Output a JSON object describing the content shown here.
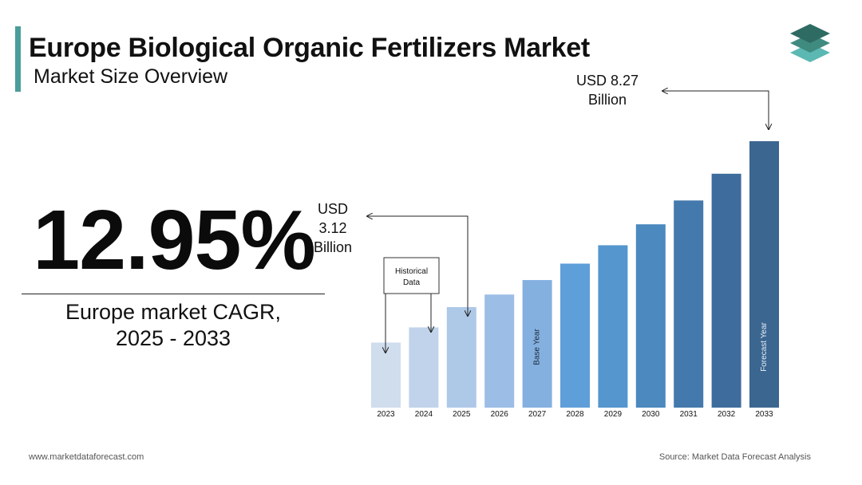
{
  "header": {
    "title": "Europe Biological Organic Fertilizers Market",
    "subtitle": "Market Size Overview"
  },
  "cagr": {
    "value": "12.95%",
    "label_line1": "Europe market CAGR,",
    "label_line2": "2025 - 2033"
  },
  "chart_data": {
    "type": "bar",
    "categories": [
      "2023",
      "2024",
      "2025",
      "2026",
      "2027",
      "2028",
      "2029",
      "2030",
      "2031",
      "2032",
      "2033"
    ],
    "values": [
      2.02,
      2.49,
      3.12,
      3.51,
      3.96,
      4.47,
      5.04,
      5.69,
      6.43,
      7.26,
      8.27
    ],
    "units": "USD Billion",
    "colors": [
      "#cfdded",
      "#c0d3ea",
      "#aec8e7",
      "#9bbde6",
      "#84b0e0",
      "#5f9fd9",
      "#5496cd",
      "#4b89bf",
      "#4479ad",
      "#3e6d9d",
      "#3b6690"
    ],
    "annotations": {
      "start_value": {
        "line1": "USD",
        "line2": "3.12",
        "line3": "Billion"
      },
      "end_value": {
        "line1": "USD 8.27",
        "line2": "Billion"
      },
      "historical_box": {
        "line1": "Historical",
        "line2": "Data"
      },
      "base_year_label": "Base Year",
      "forecast_year_label": "Forecast Year"
    }
  },
  "footer": {
    "website": "www.marketdataforecast.com",
    "source": "Source: Market Data Forecast Analysis"
  },
  "colors": {
    "accent": "#4a9d9a",
    "logo_top": "#2e6b62",
    "logo_mid": "#3f8b80",
    "logo_bottom": "#5cb8b2"
  }
}
